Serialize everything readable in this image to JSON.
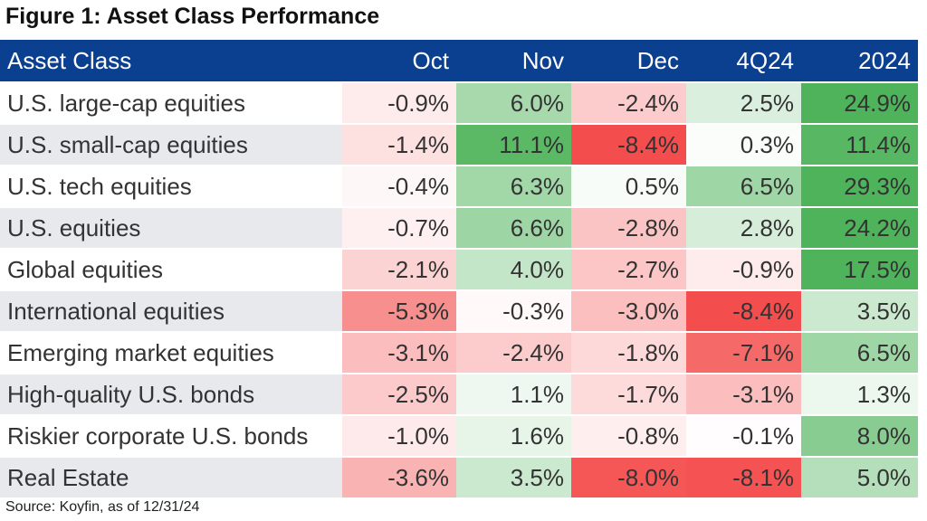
{
  "title": "Figure 1: Asset Class Performance",
  "source": "Source: Koyfin, as of 12/31/24",
  "colors": {
    "header_bg": "#0b3f8f",
    "positive": "#4eb35a",
    "negative": "#f44b4b",
    "alt_row": "#e7e9ec"
  },
  "chart_data": {
    "type": "table",
    "title": "Figure 1: Asset Class Performance",
    "columns": [
      "Asset Class",
      "Oct",
      "Nov",
      "Dec",
      "4Q24",
      "2024"
    ],
    "rows": [
      {
        "label": "U.S. large-cap equities",
        "values": [
          "-0.9%",
          "6.0%",
          "-2.4%",
          "2.5%",
          "24.9%"
        ]
      },
      {
        "label": "U.S. small-cap equities",
        "values": [
          "-1.4%",
          "11.1%",
          "-8.4%",
          "0.3%",
          "11.4%"
        ]
      },
      {
        "label": "U.S. tech equities",
        "values": [
          "-0.4%",
          "6.3%",
          "0.5%",
          "6.5%",
          "29.3%"
        ]
      },
      {
        "label": "U.S. equities",
        "values": [
          "-0.7%",
          "6.6%",
          "-2.8%",
          "2.8%",
          "24.2%"
        ]
      },
      {
        "label": "Global equities",
        "values": [
          "-2.1%",
          "4.0%",
          "-2.7%",
          "-0.9%",
          "17.5%"
        ]
      },
      {
        "label": "International equities",
        "values": [
          "-5.3%",
          "-0.3%",
          "-3.0%",
          "-8.4%",
          "3.5%"
        ]
      },
      {
        "label": "Emerging market equities",
        "values": [
          "-3.1%",
          "-2.4%",
          "-1.8%",
          "-7.1%",
          "6.5%"
        ]
      },
      {
        "label": "High-quality U.S. bonds",
        "values": [
          "-2.5%",
          "1.1%",
          "-1.7%",
          "-3.1%",
          "1.3%"
        ]
      },
      {
        "label": "Riskier corporate U.S. bonds",
        "values": [
          "-1.0%",
          "1.6%",
          "-0.8%",
          "-0.1%",
          "8.0%"
        ]
      },
      {
        "label": "Real Estate",
        "values": [
          "-3.6%",
          "3.5%",
          "-8.0%",
          "-8.1%",
          "5.0%"
        ]
      }
    ]
  }
}
